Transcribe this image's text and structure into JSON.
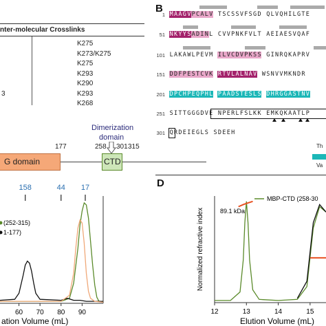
{
  "panels": {
    "b": "B",
    "d": "D"
  },
  "table": {
    "header": "nter-molecular Crosslinks",
    "rows": [
      {
        "left": "",
        "right": "K275"
      },
      {
        "left": "",
        "right": "K273/K275"
      },
      {
        "left": "",
        "right": "K275"
      },
      {
        "left": "",
        "right": "K293"
      },
      {
        "left": "",
        "right": "K290"
      },
      {
        "left": "3",
        "right": "K293"
      },
      {
        "left": "",
        "right": "K268"
      }
    ]
  },
  "sequence": {
    "rows": [
      {
        "num": "1",
        "segments": [
          [
            "MAAGV",
            "m"
          ],
          [
            "PCALV",
            "p"
          ],
          [
            " TSCSSVFSGD",
            "n"
          ],
          [
            " QLVQHILGTE",
            "n"
          ]
        ]
      },
      {
        "num": "51",
        "segments": [
          [
            "NKYYS",
            "m"
          ],
          [
            "ADIN",
            "p"
          ],
          [
            "L",
            " n"
          ],
          [
            " CVVPNKFVLT",
            "n"
          ],
          [
            " AEIAESVQAF",
            "n"
          ]
        ]
      },
      {
        "num": "101",
        "segments": [
          [
            "LAKAWLPEVM",
            "n"
          ],
          [
            " ILVCDVPKSS",
            "p"
          ],
          [
            " GINRQKAPRV",
            "n"
          ]
        ]
      },
      {
        "num": "151",
        "segments": [
          [
            "DDFPESTCVK",
            "p"
          ],
          [
            " RTVLALNAV",
            "m"
          ],
          [
            " WSNVVMKNDR",
            "n"
          ]
        ]
      },
      {
        "num": "201",
        "segments": [
          [
            "DPCHPEQPHL",
            "c"
          ],
          [
            " PAADSTESLS",
            "c"
          ],
          [
            " DHRGGASTNV",
            "c"
          ]
        ]
      },
      {
        "num": "251",
        "segments": [
          [
            "SITTGGGDVE",
            "n"
          ],
          [
            " NPERLFSLKK",
            "n"
          ],
          [
            " EMKQKAATLP",
            "n"
          ]
        ]
      },
      {
        "num": "301",
        "segments": [
          [
            "Q",
            "n"
          ],
          [
            "RDEIEGLS",
            "n"
          ],
          [
            " SDEEH",
            "n"
          ]
        ]
      }
    ],
    "legend_text_1": "Th",
    "legend_text_2": "Va"
  },
  "domain_diagram": {
    "g_domain": "G domain",
    "ctd": "CTD",
    "dimerization": "Dimerization",
    "domain_word": "domain",
    "pos_177": "177",
    "pos_258": "258",
    "pos_301": "301",
    "pos_315": "315"
  },
  "chart_data": [
    {
      "type": "line",
      "title": "",
      "xlabel": "ation Volume (mL)",
      "ylabel": "",
      "x_ticks": [
        "60",
        "70",
        "80",
        "90"
      ],
      "xlim": [
        51,
        100
      ],
      "markers": [
        {
          "label": "158",
          "x": 63
        },
        {
          "label": "44",
          "x": 80
        },
        {
          "label": "17",
          "x": 91.5
        }
      ],
      "legend": [
        "(252-315)",
        "1-177)"
      ],
      "series": [
        {
          "name": "(252-315)",
          "color": "#5a8a2a",
          "x": [
            51,
            80,
            84,
            86,
            88,
            89,
            90,
            91,
            92,
            93,
            94,
            95,
            96,
            97,
            98,
            100
          ],
          "y": [
            0.02,
            0.02,
            0.05,
            0.2,
            0.55,
            0.78,
            0.92,
            1.0,
            0.98,
            0.85,
            0.62,
            0.38,
            0.18,
            0.06,
            0.02,
            0.01
          ]
        },
        {
          "name": "1-177)",
          "color": "#111111",
          "x": [
            51,
            58,
            60,
            62,
            63,
            64,
            65,
            66,
            67,
            68,
            70,
            80,
            83,
            86,
            89,
            92,
            100
          ],
          "y": [
            0.03,
            0.04,
            0.1,
            0.28,
            0.38,
            0.42,
            0.4,
            0.32,
            0.2,
            0.1,
            0.04,
            0.03,
            0.05,
            0.03,
            0.03,
            0.02,
            0.02
          ]
        },
        {
          "name": "",
          "color": "#f0a878",
          "x": [
            51,
            80,
            84,
            86,
            87,
            88,
            89,
            90,
            91,
            92,
            93,
            94,
            96,
            100
          ],
          "y": [
            0.02,
            0.02,
            0.08,
            0.3,
            0.55,
            0.75,
            0.83,
            0.8,
            0.6,
            0.3,
            0.12,
            0.05,
            0.02,
            0.01
          ]
        }
      ]
    },
    {
      "type": "line",
      "title": "",
      "xlabel": "Elution Volume (mL)",
      "ylabel": "Normalized refractive index",
      "x_ticks": [
        "12",
        "13",
        "14",
        "15"
      ],
      "xlim": [
        12,
        15.5
      ],
      "legend": [
        "MBP-CTD (258-30"
      ],
      "annotation": "89.1 kDa",
      "series": [
        {
          "name": "MBP-CTD (258-30",
          "color": "#5a8a2a",
          "x": [
            12,
            12.5,
            12.8,
            12.9,
            12.95,
            13.0,
            13.05,
            13.1,
            13.2,
            13.4,
            14.0,
            14.6,
            14.9,
            15.1,
            15.3,
            15.5
          ],
          "y": [
            0.02,
            0.02,
            0.1,
            0.4,
            0.75,
            0.95,
            0.75,
            0.4,
            0.12,
            0.03,
            0.02,
            0.03,
            0.15,
            0.7,
            0.9,
            0.85
          ]
        },
        {
          "name": "",
          "color": "#111111",
          "x": [
            14.6,
            14.9,
            15.1,
            15.3,
            15.5
          ],
          "y": [
            0.04,
            0.2,
            0.75,
            0.92,
            0.85
          ]
        },
        {
          "name": "",
          "color": "#e85020",
          "x": [
            12.75,
            12.9,
            13.0,
            13.1,
            13.2
          ],
          "y": [
            0.9,
            0.92,
            0.93,
            0.94,
            0.95
          ]
        },
        {
          "name": "",
          "color": "#e85020",
          "x": [
            15.0,
            15.5
          ],
          "y": [
            0.42,
            0.42
          ]
        }
      ]
    }
  ]
}
